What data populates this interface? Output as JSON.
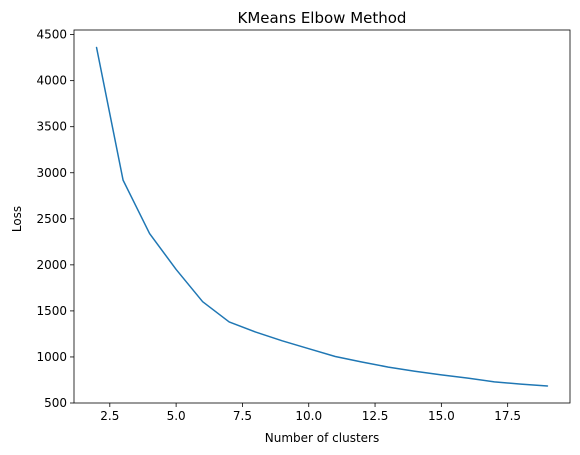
{
  "chart_data": {
    "type": "line",
    "title": "KMeans Elbow Method",
    "xlabel": "Number of clusters",
    "ylabel": "Loss",
    "xlim": [
      1.15,
      19.85
    ],
    "ylim": [
      500,
      4550
    ],
    "xticks": [
      2.5,
      5.0,
      7.5,
      10.0,
      12.5,
      15.0,
      17.5
    ],
    "xtick_labels": [
      "2.5",
      "5.0",
      "7.5",
      "10.0",
      "12.5",
      "15.0",
      "17.5"
    ],
    "yticks": [
      500,
      1000,
      1500,
      2000,
      2500,
      3000,
      3500,
      4000,
      4500
    ],
    "ytick_labels": [
      "500",
      "1000",
      "1500",
      "2000",
      "2500",
      "3000",
      "3500",
      "4000",
      "4500"
    ],
    "grid": false,
    "legend": "none",
    "series": [
      {
        "color": "#1f77b4",
        "x": [
          2,
          3,
          4,
          5,
          6,
          7,
          8,
          9,
          10,
          11,
          12,
          13,
          14,
          15,
          16,
          17,
          18,
          19
        ],
        "y": [
          4360,
          2920,
          2340,
          1950,
          1600,
          1380,
          1270,
          1175,
          1090,
          1005,
          945,
          890,
          845,
          805,
          770,
          730,
          705,
          685
        ]
      }
    ]
  }
}
